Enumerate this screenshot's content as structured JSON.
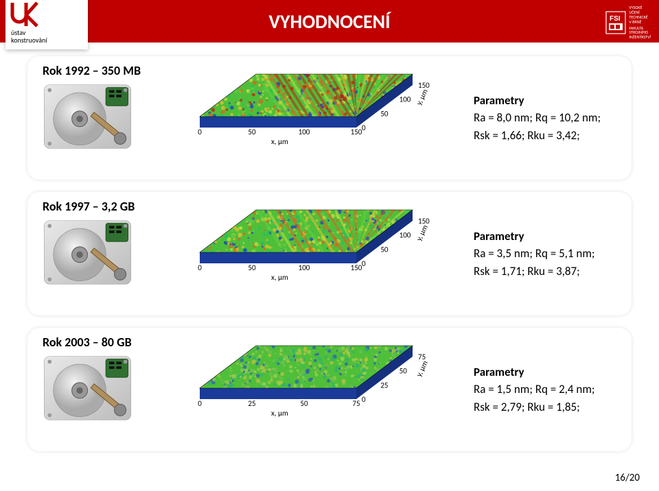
{
  "title": "VYHODNOCENÍ",
  "logo_left": {
    "line1": "ústav",
    "line2": "konstruování"
  },
  "logo_right": {
    "line1": "VYSOKÉ",
    "line2": "UČENÍ",
    "line3": "TECHNICKÉ",
    "line4": "V BRNĚ",
    "line5": "FAKULTA",
    "line6": "STROJNÍHO",
    "line7": "INŽENÝRSTVÍ"
  },
  "rows": [
    {
      "heading": "Rok 1992 – 350 MB",
      "params_title": "Parametry",
      "params_line1": "Ra =  8,0 nm; Rq =  10,2 nm;",
      "params_line2": "Rsk = 1,66; Rku = 3,42;",
      "surface": {
        "axis_x_label": "x, µm",
        "axis_y_label": "y, µm",
        "x_ticks": [
          "150",
          "100",
          "50",
          "0"
        ],
        "y_ticks": [
          "150",
          "100",
          "50",
          "0"
        ],
        "colormap": [
          "#2040c0",
          "#20c060",
          "#60d040",
          "#c0e040",
          "#e0c030",
          "#e06020",
          "#c02010"
        ],
        "stripe_angle": -32,
        "stripe_count": 26
      }
    },
    {
      "heading": "Rok 1997 – 3,2 GB",
      "params_title": "Parametry",
      "params_line1": "Ra =  3,5 nm; Rq =  5,1 nm;",
      "params_line2": "Rsk = 1,71; Rku = 3,87;",
      "surface": {
        "axis_x_label": "x, µm",
        "axis_y_label": "y, µm",
        "x_ticks": [
          "150",
          "100",
          "50",
          "0"
        ],
        "y_ticks": [
          "150",
          "100",
          "50",
          "0"
        ],
        "colormap": [
          "#2040c0",
          "#20c060",
          "#60d040",
          "#c0e040",
          "#e0c030",
          "#e06020"
        ],
        "stripe_angle": -26,
        "stripe_count": 16
      }
    },
    {
      "heading": "Rok 2003 – 80 GB",
      "params_title": "Parametry",
      "params_line1": "Ra =  1,5 nm; Rq = 2,4 nm;",
      "params_line2": "Rsk = 2,79; Rku = 1,85;",
      "surface": {
        "axis_x_label": "x, µm",
        "axis_y_label": "y, µm",
        "x_ticks": [
          "75",
          "50",
          "25",
          "0"
        ],
        "y_ticks": [
          "75",
          "50",
          "25",
          "0"
        ],
        "colormap": [
          "#3060b0",
          "#30b070",
          "#70c050",
          "#a0d050",
          "#c0c040"
        ],
        "stripe_angle": 0,
        "stripe_count": 0
      }
    }
  ],
  "page": "16/20"
}
